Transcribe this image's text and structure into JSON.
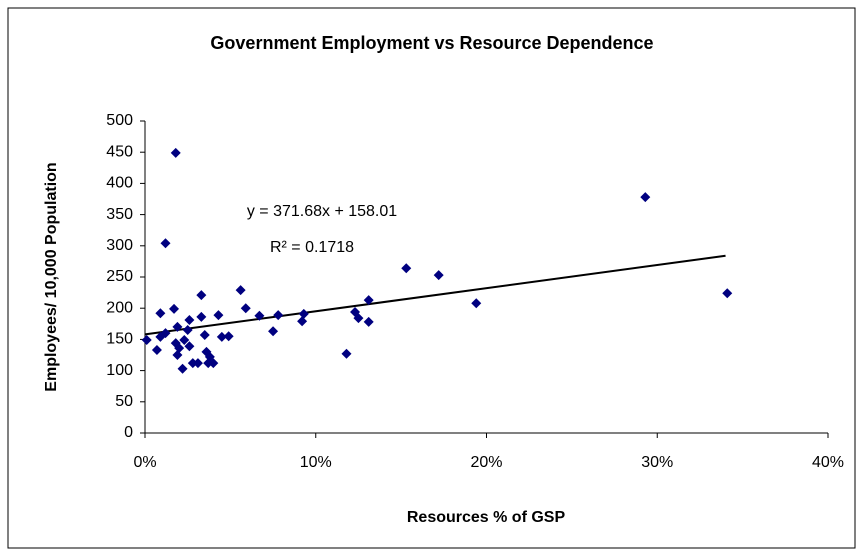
{
  "chart_data": {
    "type": "scatter",
    "title": "Government Employment vs Resource Dependence",
    "x_label": "Resources % of GSP",
    "y_label": "Employees/ 10,000 Population",
    "annotations": [
      "y = 371.68x + 158.01",
      "R² = 0.1718"
    ],
    "x": [
      0.1,
      0.7,
      0.9,
      0.9,
      1.2,
      1.2,
      1.7,
      1.8,
      1.9,
      1.8,
      1.9,
      2.0,
      2.2,
      2.3,
      2.5,
      2.6,
      2.6,
      2.8,
      3.1,
      3.3,
      3.3,
      3.5,
      3.6,
      3.7,
      3.8,
      4.0,
      4.3,
      4.5,
      4.9,
      5.6,
      5.9,
      6.7,
      7.5,
      7.8,
      9.2,
      9.3,
      11.8,
      12.3,
      12.5,
      13.1,
      13.1,
      15.3,
      17.2,
      19.4,
      29.3,
      34.1
    ],
    "series": [
      {
        "name": "Employees",
        "color": "#000080",
        "values": [
          149,
          133,
          192,
          154,
          160,
          304,
          199,
          449,
          170,
          144,
          125,
          136,
          103,
          149,
          165,
          139,
          181,
          112,
          112,
          221,
          186,
          157,
          130,
          112,
          122,
          112,
          189,
          154,
          155,
          229,
          200,
          188,
          163,
          189,
          179,
          191,
          127,
          194,
          184,
          213,
          178,
          264,
          253,
          208,
          378,
          224
        ]
      }
    ],
    "trendline": {
      "color": "#000000",
      "x": [
        0,
        34
      ],
      "y": [
        158,
        284
      ]
    },
    "xlim": [
      0,
      40
    ],
    "xticks": [
      {
        "value": 0,
        "label": "0%"
      },
      {
        "value": 10,
        "label": "10%"
      },
      {
        "value": 20,
        "label": "20%"
      },
      {
        "value": 30,
        "label": "30%"
      },
      {
        "value": 40,
        "label": "40%"
      }
    ],
    "ylim": [
      0,
      500
    ],
    "yticks": [
      0,
      50,
      100,
      150,
      200,
      250,
      300,
      350,
      400,
      450,
      500
    ],
    "grid": false
  }
}
